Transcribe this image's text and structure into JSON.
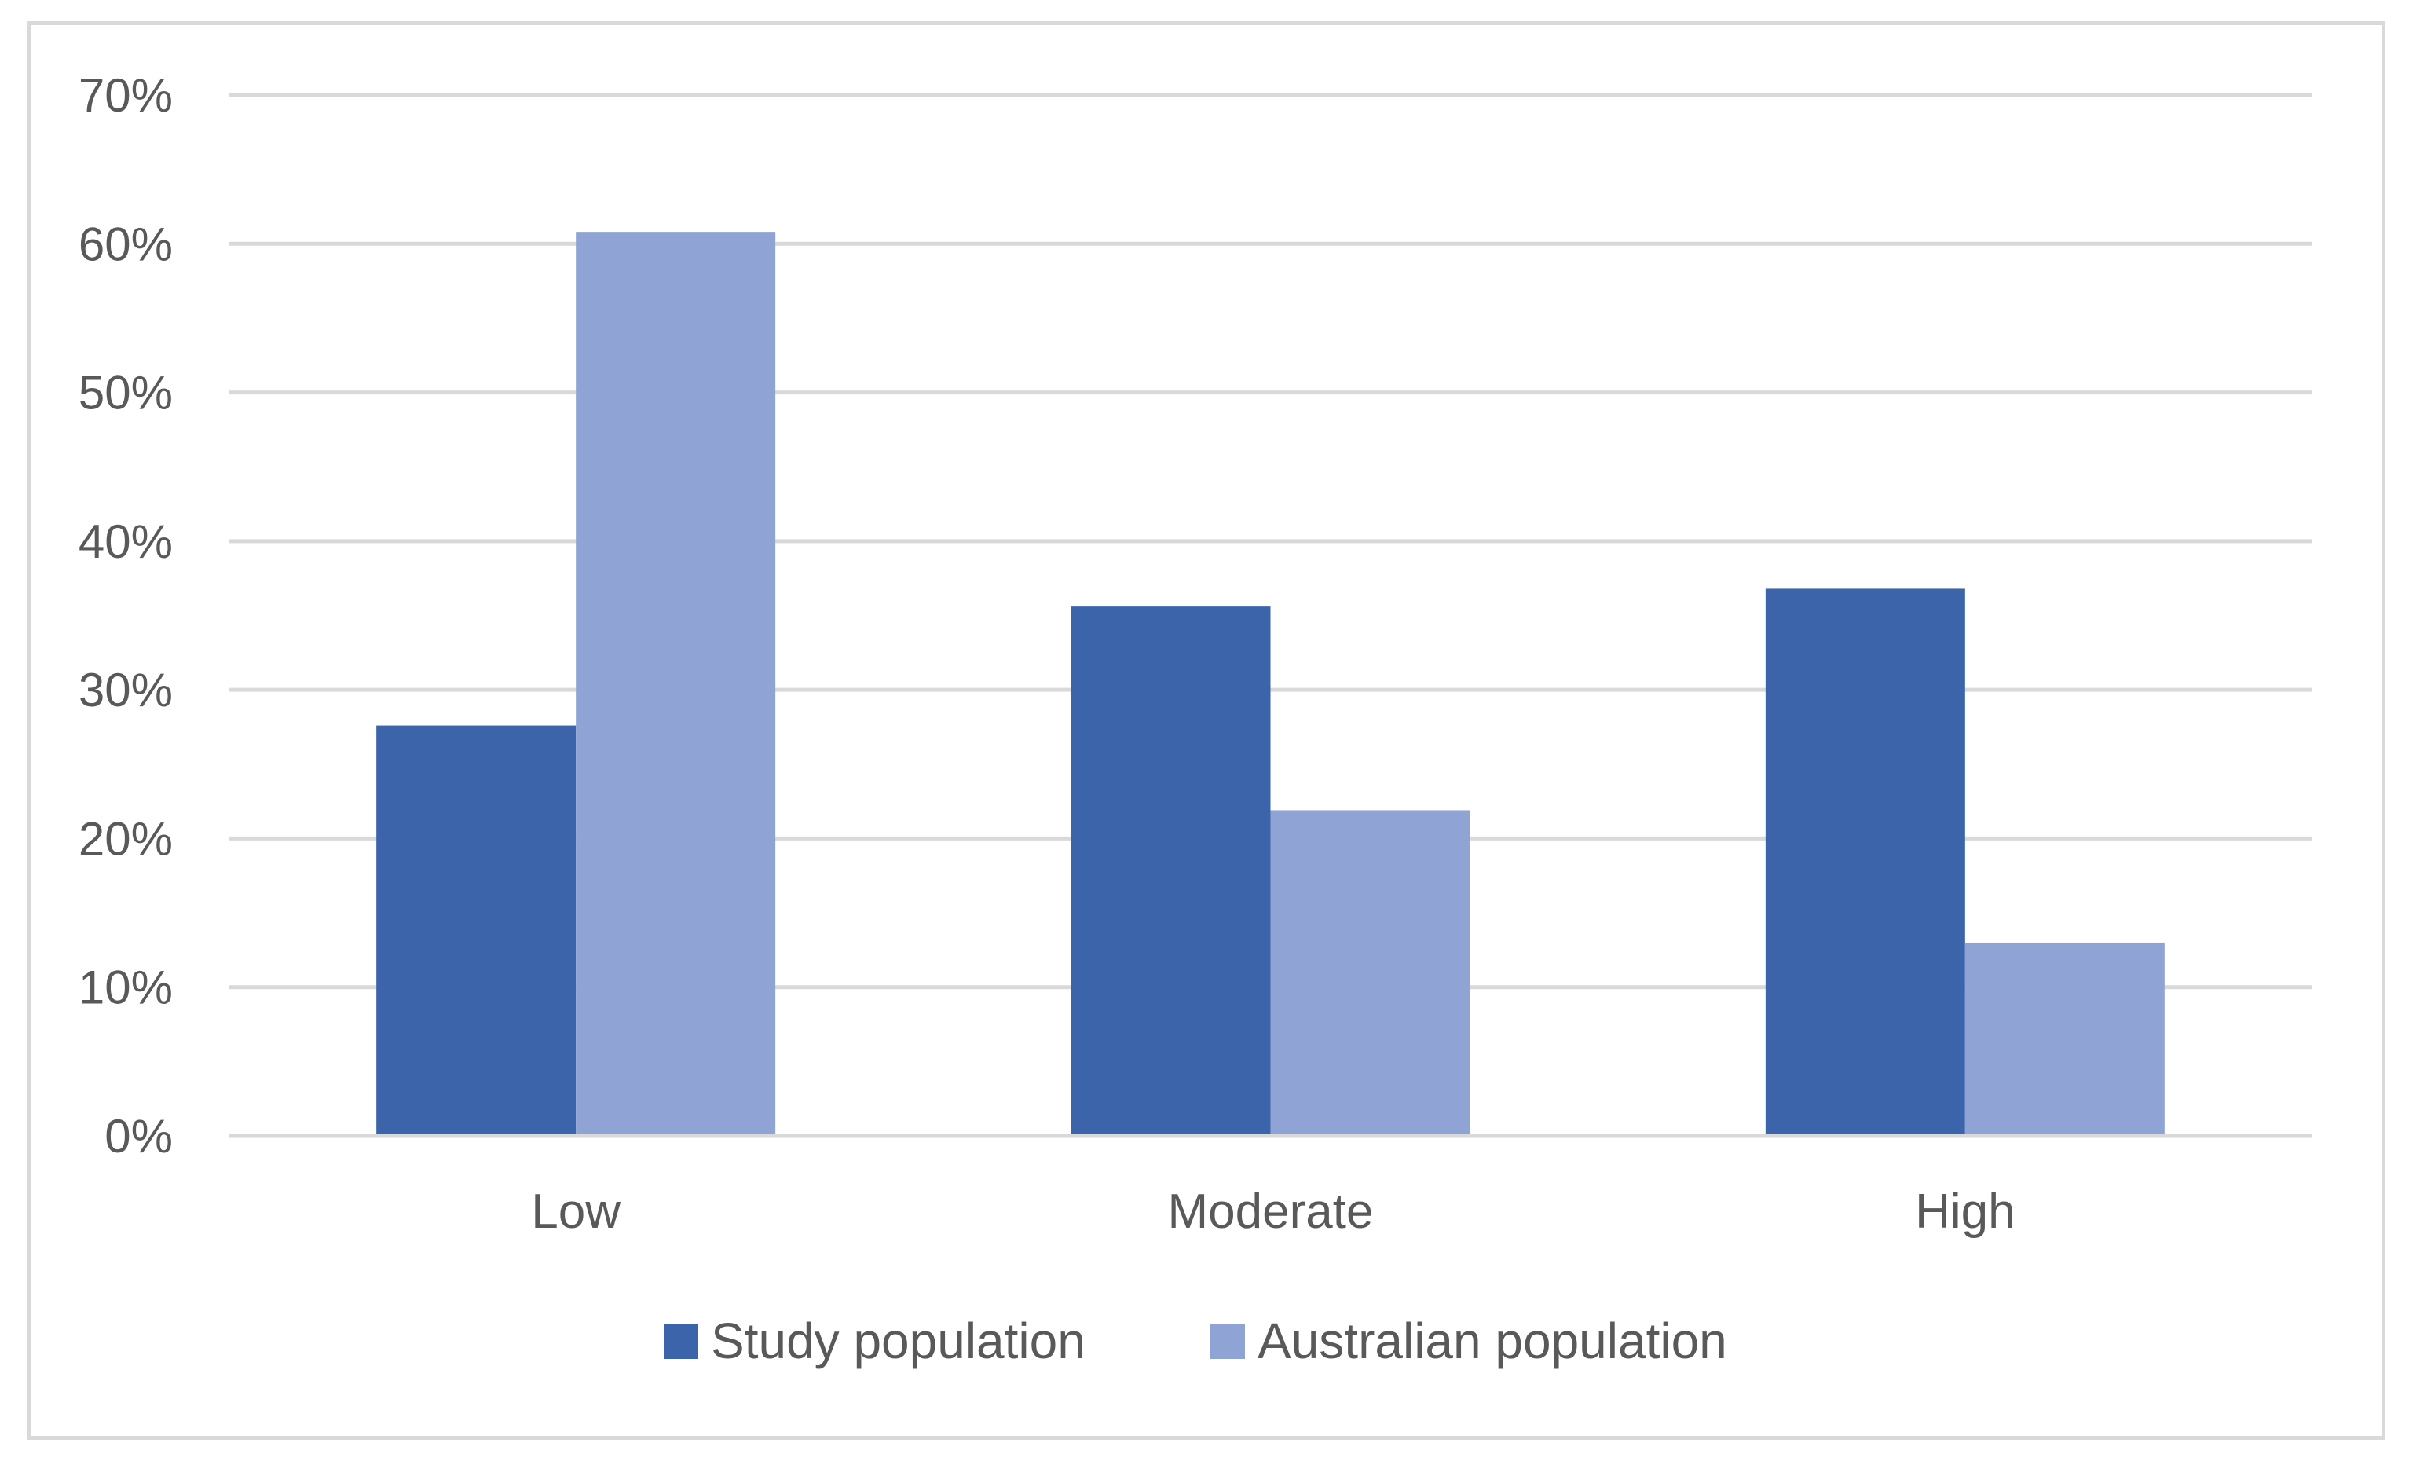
{
  "chart_data": {
    "type": "bar",
    "title": "",
    "xlabel": "",
    "ylabel": "",
    "categories": [
      "Low",
      "Moderate",
      "High"
    ],
    "series": [
      {
        "name": "Study population",
        "color": "#3c64ab",
        "values": [
          27.6,
          35.6,
          36.8
        ]
      },
      {
        "name": "Australian population",
        "color": "#8fa4d4",
        "values": [
          60.8,
          21.9,
          13.0
        ]
      }
    ],
    "ylim": [
      0,
      70
    ],
    "yticks": [
      0,
      10,
      20,
      30,
      40,
      50,
      60,
      70
    ],
    "ytick_labels": [
      "0%",
      "10%",
      "20%",
      "30%",
      "40%",
      "50%",
      "60%",
      "70%"
    ],
    "grid": true,
    "grid_color": "#d9d9d9",
    "legend_position": "bottom"
  }
}
